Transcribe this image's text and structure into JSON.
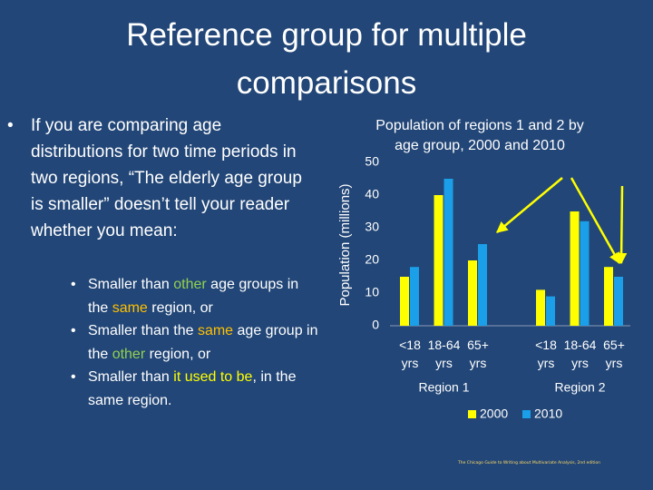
{
  "slide": {
    "title": "Reference group for multiple comparisons",
    "bullet": "If you are comparing age distributions for two time periods in two regions, “The elderly age group is smaller” doesn’t tell your reader whether you mean:",
    "sub_bullets": [
      [
        {
          "text": "Smaller than "
        },
        {
          "text": "other",
          "color": "#92d050"
        },
        {
          "text": " age groups in the "
        },
        {
          "text": "same",
          "color": "#ffc000"
        },
        {
          "text": " region, or"
        }
      ],
      [
        {
          "text": "Smaller than the "
        },
        {
          "text": "same",
          "color": "#ffc000"
        },
        {
          "text": " age group in the "
        },
        {
          "text": "other",
          "color": "#92d050"
        },
        {
          "text": " region, or"
        }
      ],
      [
        {
          "text": "Smaller than "
        },
        {
          "text": "it used to be",
          "color": "#ffff00"
        },
        {
          "text": ", in the same region."
        }
      ]
    ],
    "source": "The Chicago Guide to Writing about Multivariate Analysis, 2nd edition"
  },
  "chart_data": {
    "type": "bar",
    "title": "Population of regions 1 and 2 by age group, 2000 and 2010",
    "y_label": "Population (millions)",
    "categories": [
      "<18 yrs",
      "18-64 yrs",
      "65+ yrs",
      null,
      "<18 yrs",
      "18-64 yrs",
      "65+ yrs"
    ],
    "group_labels": [
      "Region 1",
      "Region 2"
    ],
    "series": [
      {
        "name": "2000",
        "color": "#ffff00",
        "values": [
          15,
          40,
          20,
          null,
          11,
          35,
          18
        ]
      },
      {
        "name": "2010",
        "color": "#1a9fe8",
        "values": [
          18,
          45,
          25,
          null,
          9,
          32,
          15
        ]
      }
    ],
    "ylim": [
      0,
      50
    ],
    "yticks": [
      0,
      10,
      20,
      30,
      40,
      50
    ],
    "grid": false
  }
}
